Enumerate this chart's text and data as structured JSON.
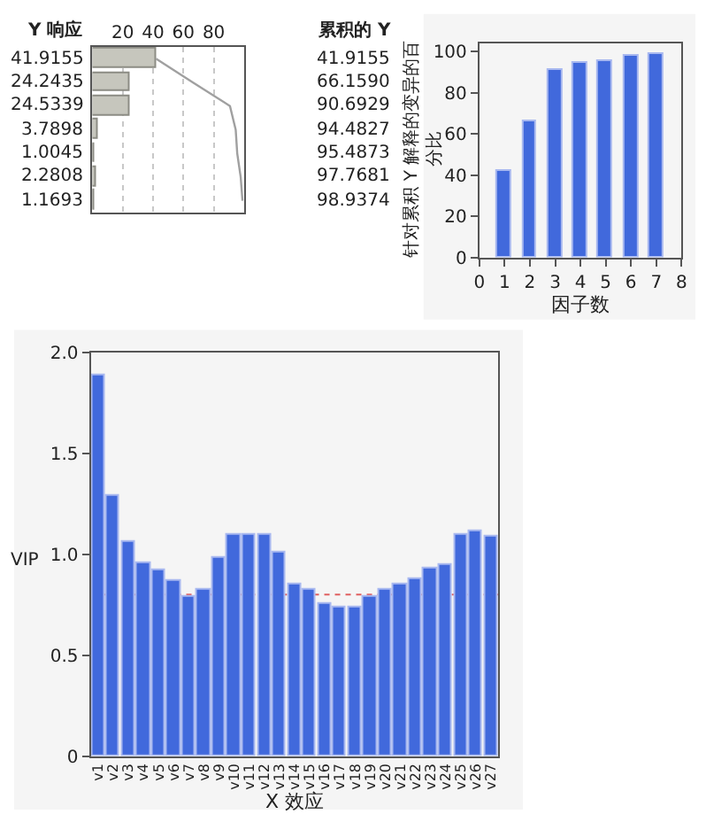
{
  "chart_data": [
    {
      "type": "bar",
      "orientation": "horizontal",
      "categories": [
        null,
        null,
        null,
        null,
        null,
        null,
        null
      ],
      "series": [
        {
          "name": "Y 响应",
          "color": "#c6c6bd",
          "values": [
            41.9155,
            24.2435,
            24.5339,
            3.7898,
            1.0045,
            2.2808,
            1.1693
          ],
          "value_labels": [
            "41.9155",
            "24.2435",
            "24.5339",
            "3.7898",
            "1.0045",
            "2.2808",
            "1.1693"
          ]
        },
        {
          "type": "line",
          "color": "#a0a0a0",
          "values": [
            41.9155,
            66.159,
            90.6929,
            94.4827,
            95.4873,
            97.7681,
            98.9374
          ],
          "value_labels": [
            "41.9155",
            "66.1590",
            "90.6929",
            "94.4827",
            "95.4873",
            "97.7681",
            "98.9374"
          ]
        }
      ],
      "xlim": [
        0,
        100
      ],
      "xticks": [
        20,
        40,
        60,
        80
      ],
      "grid": "x",
      "tick_labels": "x",
      "annotations": [
        "累积的 Y"
      ]
    },
    {
      "type": "bar",
      "x": [
        1,
        2,
        3,
        4,
        5,
        6,
        7
      ],
      "values": [
        41.9,
        66.2,
        90.7,
        94.5,
        95.5,
        97.8,
        98.9
      ],
      "color": "#4169dc",
      "xlim": [
        0,
        8
      ],
      "xticks": [
        0,
        1,
        2,
        3,
        4,
        5,
        6,
        7,
        8
      ],
      "ylim": [
        0,
        104
      ],
      "yticks": [
        0,
        20,
        40,
        60,
        80,
        100
      ],
      "xlabel": "因子数",
      "ylabel": "针对累积 Y 解释的变异的百分比"
    },
    {
      "type": "bar",
      "categories": [
        "v1",
        "v2",
        "v3",
        "v4",
        "v5",
        "v6",
        "v7",
        "v8",
        "v9",
        "v10",
        "v11",
        "v12",
        "v13",
        "v14",
        "v15",
        "v16",
        "v17",
        "v18",
        "v19",
        "v20",
        "v21",
        "v22",
        "v23",
        "v24",
        "v25",
        "v26",
        "v27"
      ],
      "values": [
        1.89,
        1.29,
        1.06,
        0.96,
        0.92,
        0.87,
        0.79,
        0.82,
        0.98,
        1.1,
        1.1,
        1.1,
        1.01,
        0.85,
        0.82,
        0.75,
        0.74,
        0.74,
        0.79,
        0.82,
        0.85,
        0.88,
        0.93,
        0.95,
        1.1,
        1.11,
        1.09
      ],
      "color": "#4169dc",
      "ylim": [
        0,
        2
      ],
      "yticks": [
        0,
        0.5,
        {
          "value": 1,
          "label": "1.0"
        },
        1.5,
        {
          "value": 2,
          "label": "2.0"
        }
      ],
      "xlabel": "X 效应",
      "ylabel": "VIP",
      "ref_lines": [
        {
          "axis": "y",
          "value": 0.8,
          "color": "#e06060",
          "line_style": "dotted"
        }
      ]
    }
  ]
}
